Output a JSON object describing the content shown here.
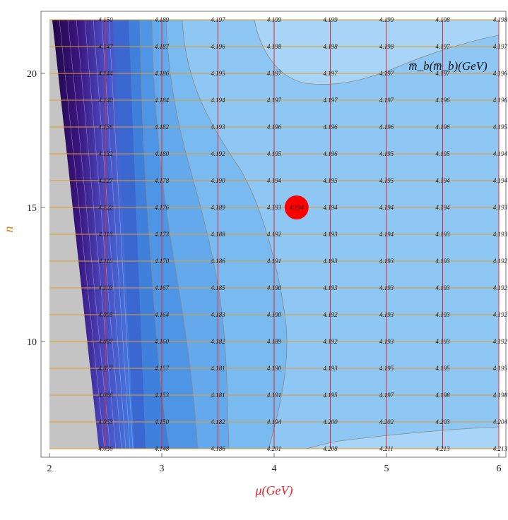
{
  "chart_data": {
    "type": "heatmap",
    "title": "",
    "legend_label": "m̅_b(m̅_b)(GeV)",
    "legend_placement": "top-right",
    "xlabel": "μ(GeV)",
    "ylabel": "n",
    "xlim": [
      2,
      6
    ],
    "ylim": [
      6,
      22
    ],
    "x_ticks": [
      2,
      3,
      4,
      5,
      6
    ],
    "y_ticks": [
      10,
      15,
      20
    ],
    "x_tick_labels": [
      "2",
      "3",
      "4",
      "5",
      "6"
    ],
    "y_tick_labels": [
      "10",
      "15",
      "20"
    ],
    "grid": {
      "vertical_lines_mu": [
        2.5,
        3.0,
        3.5,
        4.0,
        4.5,
        5.0,
        5.5,
        6.0
      ],
      "horizontal_lines_n": [
        6,
        7,
        8,
        9,
        10,
        11,
        12,
        13,
        14,
        15,
        16,
        17,
        18,
        19,
        20,
        21,
        22
      ]
    },
    "mu": [
      2.5,
      3.0,
      3.5,
      4.0,
      4.5,
      5.0,
      5.5,
      6.0
    ],
    "n": [
      22,
      21,
      20,
      19,
      18,
      17,
      16,
      15,
      14,
      13,
      12,
      11,
      10,
      9,
      8,
      7,
      6
    ],
    "values": [
      [
        "4.150",
        "4.189",
        "4.197",
        "4.199",
        "4.199",
        "4.199",
        "4.198",
        "4.198"
      ],
      [
        "4.147",
        "4.187",
        "4.196",
        "4.198",
        "4.198",
        "4.198",
        "4.197",
        "4.197"
      ],
      [
        "4.144",
        "4.186",
        "4.195",
        "4.197",
        "4.197",
        "4.197",
        "4.197",
        "4.196"
      ],
      [
        "4.140",
        "4.184",
        "4.194",
        "4.197",
        "4.197",
        "4.197",
        "4.196",
        "4.196"
      ],
      [
        "4.136",
        "4.182",
        "4.193",
        "4.196",
        "4.196",
        "4.196",
        "4.196",
        "4.195"
      ],
      [
        "4.132",
        "4.180",
        "4.192",
        "4.195",
        "4.196",
        "4.195",
        "4.195",
        "4.194"
      ],
      [
        "4.127",
        "4.178",
        "4.190",
        "4.194",
        "4.195",
        "4.195",
        "4.194",
        "4.194"
      ],
      [
        "4.122",
        "4.176",
        "4.189",
        "4.193",
        "4.194",
        "4.194",
        "4.194",
        "4.193"
      ],
      [
        "4.116",
        "4.173",
        "4.188",
        "4.192",
        "4.193",
        "4.194",
        "4.193",
        "4.193"
      ],
      [
        "4.110",
        "4.170",
        "4.186",
        "4.191",
        "4.193",
        "4.193",
        "4.193",
        "4.192"
      ],
      [
        "4.103",
        "4.167",
        "4.185",
        "4.190",
        "4.193",
        "4.193",
        "4.193",
        "4.192"
      ],
      [
        "4.095",
        "4.164",
        "4.183",
        "4.190",
        "4.192",
        "4.193",
        "4.193",
        "4.192"
      ],
      [
        "4.087",
        "4.160",
        "4.182",
        "4.189",
        "4.192",
        "4.193",
        "4.193",
        "4.192"
      ],
      [
        "4.077",
        "4.157",
        "4.181",
        "4.190",
        "4.193",
        "4.195",
        "4.195",
        "4.195"
      ],
      [
        "4.066",
        "4.153",
        "4.181",
        "4.191",
        "4.195",
        "4.197",
        "4.198",
        "4.198"
      ],
      [
        "4.053",
        "4.150",
        "4.182",
        "4.194",
        "4.200",
        "4.202",
        "4.203",
        "4.204"
      ],
      [
        "4.036",
        "4.148",
        "4.186",
        "4.201",
        "4.208",
        "4.211",
        "4.213",
        "4.213"
      ]
    ],
    "highlight_point": {
      "mu": 4.2,
      "n": 15,
      "label": "4.194",
      "color": "#ff0000"
    },
    "colors": {
      "gray_region": "#c4c4c4",
      "dark_band": "#2a0a55",
      "grid_vertical": "#dd2a2a",
      "grid_horizontal": "#e89a22",
      "contour_line": "#8a8a8a",
      "x_label_color": "#e8242f",
      "y_label_color": "#e27a10"
    }
  }
}
